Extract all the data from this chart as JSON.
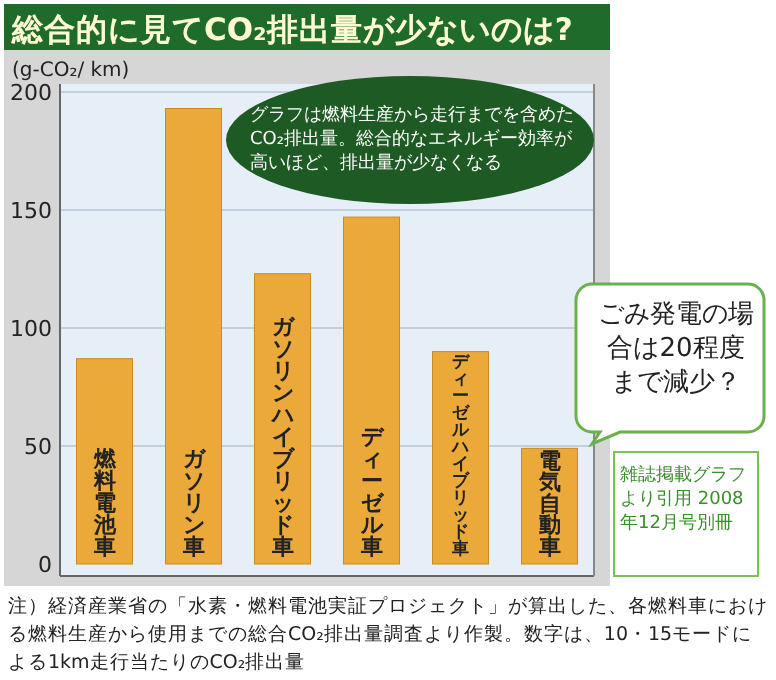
{
  "chart_data": {
    "type": "bar",
    "title": "総合的に見てCO₂排出量が少ないのは?",
    "ylabel": "(g-CO₂/ km)",
    "categories": [
      "燃料電池車",
      "ガソリン車",
      "ガソリンハイブリッド車",
      "ディーゼル車",
      "ディーゼルハイブリッド車",
      "電気自動車"
    ],
    "values": [
      87,
      193,
      123,
      147,
      90,
      49
    ],
    "color": "#eba93a",
    "ylim": [
      0,
      200
    ],
    "yticks": [
      0,
      50,
      100,
      150,
      200
    ],
    "grid": "y",
    "annotations": [
      "グラフは燃料生産から走行までを含めたCO₂排出量。総合的なエネルギー効率が高いほど、排出量が少なくなる",
      "ごみ発電の場合は20程度まで減少？",
      "雑誌掲載グラフより引用 2008年12月号別冊",
      "注）経済産業省の「水素・燃料電池実証プロジェクト」が算出した、各燃料車における燃料生産から使用までの総合CO₂排出量調査より作製。数字は、10・15モードによる1km走行当たりのCO₂排出量"
    ]
  }
}
